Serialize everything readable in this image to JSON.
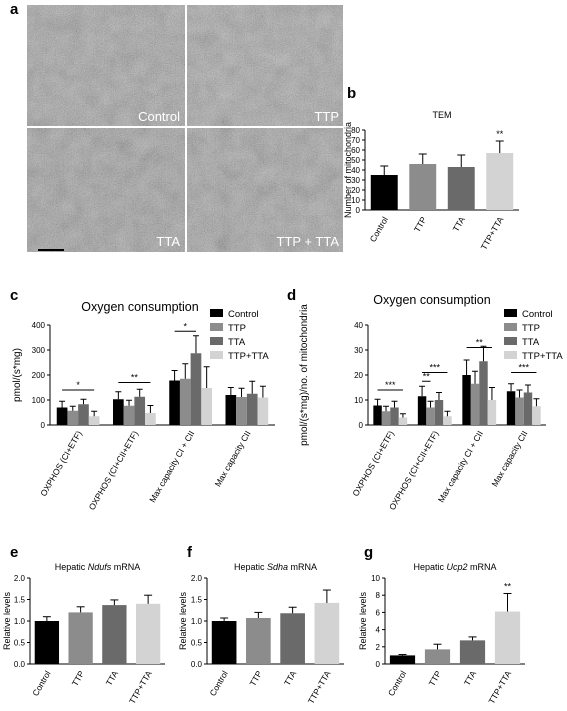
{
  "panel_labels": {
    "a": "a",
    "b": "b",
    "c": "c",
    "d": "d",
    "e": "e",
    "f": "f",
    "g": "g"
  },
  "micrographs": [
    {
      "label": "Control"
    },
    {
      "label": "TTP"
    },
    {
      "label": "TTA"
    },
    {
      "label": "TTP + TTA"
    }
  ],
  "colors": {
    "Control": "#000000",
    "TTP": "#8c8c8c",
    "TTA": "#6a6a6a",
    "TTP+TTA": "#d3d3d3"
  },
  "chart_data": [
    {
      "id": "b",
      "type": "bar",
      "title": "TEM",
      "ylabel": "Number of mitochondria",
      "categories": [
        "Control",
        "TTP",
        "TTA",
        "TTP+TTA"
      ],
      "values": [
        35,
        46,
        43,
        57
      ],
      "errors": [
        9,
        10,
        12,
        12
      ],
      "annotations": [
        {
          "index": 3,
          "text": "**"
        }
      ],
      "ylim": [
        0,
        80
      ],
      "yticks": [
        0,
        10,
        20,
        30,
        40,
        50,
        60,
        70,
        80
      ],
      "colors": [
        "#000000",
        "#8c8c8c",
        "#6a6a6a",
        "#d3d3d3"
      ]
    },
    {
      "id": "c",
      "type": "bar",
      "title": "Oxygen consumption",
      "ylabel": "pmol/(s*mg)",
      "categories": [
        "OXPHOS (CI+ETF)",
        "OXPHOS (CI+CII+ETF)",
        "Max capacity CI + CII",
        "Max capacity CII"
      ],
      "series": [
        {
          "name": "Control",
          "values": [
            70,
            103,
            178,
            120
          ],
          "errors": [
            25,
            30,
            40,
            30
          ]
        },
        {
          "name": "TTP",
          "values": [
            57,
            77,
            185,
            112
          ],
          "errors": [
            18,
            22,
            60,
            35
          ]
        },
        {
          "name": "TTA",
          "values": [
            83,
            113,
            287,
            125
          ],
          "errors": [
            20,
            30,
            70,
            50
          ]
        },
        {
          "name": "TTP+TTA",
          "values": [
            35,
            48,
            148,
            110
          ],
          "errors": [
            20,
            30,
            85,
            45
          ]
        }
      ],
      "significance": [
        {
          "group": 0,
          "from": 0,
          "to": 3,
          "y": 140,
          "text": "*"
        },
        {
          "group": 1,
          "from": 0,
          "to": 3,
          "y": 170,
          "text": "**"
        },
        {
          "group": 2,
          "from": 0,
          "to": 2,
          "y": 375,
          "text": "*"
        }
      ],
      "ylim": [
        0,
        400
      ],
      "yticks": [
        0,
        100,
        200,
        300,
        400
      ],
      "legend": "top-right"
    },
    {
      "id": "d",
      "type": "bar",
      "title": "Oxygen consumption",
      "ylabel": "pmol/(s*mg)/no. of mitochondria",
      "categories": [
        "OXPHOS (CI+ETF)",
        "OXPHOS (CI+CII+ETF)",
        "Max capacity CI + CII",
        "Max capacity CII"
      ],
      "series": [
        {
          "name": "Control",
          "values": [
            7.8,
            11.5,
            20,
            13.5
          ],
          "errors": [
            2.5,
            4,
            6,
            3
          ]
        },
        {
          "name": "TTP",
          "values": [
            5.5,
            7,
            16.5,
            11
          ],
          "errors": [
            2,
            2.5,
            5,
            3
          ]
        },
        {
          "name": "TTA",
          "values": [
            7,
            10,
            25.5,
            13
          ],
          "errors": [
            2.5,
            3,
            6,
            3
          ]
        },
        {
          "name": "TTP+TTA",
          "values": [
            3,
            3.5,
            10,
            7.5
          ],
          "errors": [
            1.5,
            2,
            5,
            3
          ]
        }
      ],
      "significance": [
        {
          "group": 0,
          "from": 0,
          "to": 3,
          "y": 14,
          "text": "***"
        },
        {
          "group": 1,
          "from": 0,
          "to": 1,
          "y": 17.5,
          "text": "**"
        },
        {
          "group": 1,
          "from": 0,
          "to": 3,
          "y": 21,
          "text": "***"
        },
        {
          "group": 2,
          "from": 0,
          "to": 3,
          "y": 31,
          "text": "**"
        },
        {
          "group": 3,
          "from": 0,
          "to": 3,
          "y": 21,
          "text": "***"
        }
      ],
      "ylim": [
        0,
        40
      ],
      "yticks": [
        0,
        10,
        20,
        30,
        40
      ],
      "legend": "top-right"
    },
    {
      "id": "e",
      "type": "bar",
      "title": "Hepatic Ndufs mRNA",
      "title_italic": "Ndufs",
      "ylabel": "Relative levels",
      "categories": [
        "Control",
        "TTP",
        "TTA",
        "TTP+TTA"
      ],
      "values": [
        1.0,
        1.2,
        1.37,
        1.4
      ],
      "errors": [
        0.1,
        0.13,
        0.12,
        0.2
      ],
      "ylim": [
        0,
        2.0
      ],
      "yticks": [
        0.0,
        0.5,
        1.0,
        1.5,
        2.0
      ],
      "colors": [
        "#000000",
        "#8c8c8c",
        "#6a6a6a",
        "#d3d3d3"
      ]
    },
    {
      "id": "f",
      "type": "bar",
      "title": "Hepatic Sdha mRNA",
      "title_italic": "Sdha",
      "ylabel": "Relative levels",
      "categories": [
        "Control",
        "TTP",
        "TTA",
        "TTP+TTA"
      ],
      "values": [
        1.0,
        1.07,
        1.18,
        1.42
      ],
      "errors": [
        0.07,
        0.13,
        0.14,
        0.3
      ],
      "ylim": [
        0,
        2.0
      ],
      "yticks": [
        0.0,
        0.5,
        1.0,
        1.5,
        2.0
      ],
      "colors": [
        "#000000",
        "#8c8c8c",
        "#6a6a6a",
        "#d3d3d3"
      ]
    },
    {
      "id": "g",
      "type": "bar",
      "title": "Hepatic Ucp2 mRNA",
      "title_italic": "Ucp2",
      "ylabel": "Relative levels",
      "categories": [
        "Control",
        "TTP",
        "TTA",
        "TTP+TTA"
      ],
      "values": [
        1.0,
        1.7,
        2.75,
        6.1
      ],
      "errors": [
        0.1,
        0.6,
        0.4,
        2.1
      ],
      "annotations": [
        {
          "index": 3,
          "text": "**"
        }
      ],
      "ylim": [
        0,
        10
      ],
      "yticks": [
        0,
        2,
        4,
        6,
        8,
        10
      ],
      "colors": [
        "#000000",
        "#8c8c8c",
        "#6a6a6a",
        "#d3d3d3"
      ]
    }
  ]
}
